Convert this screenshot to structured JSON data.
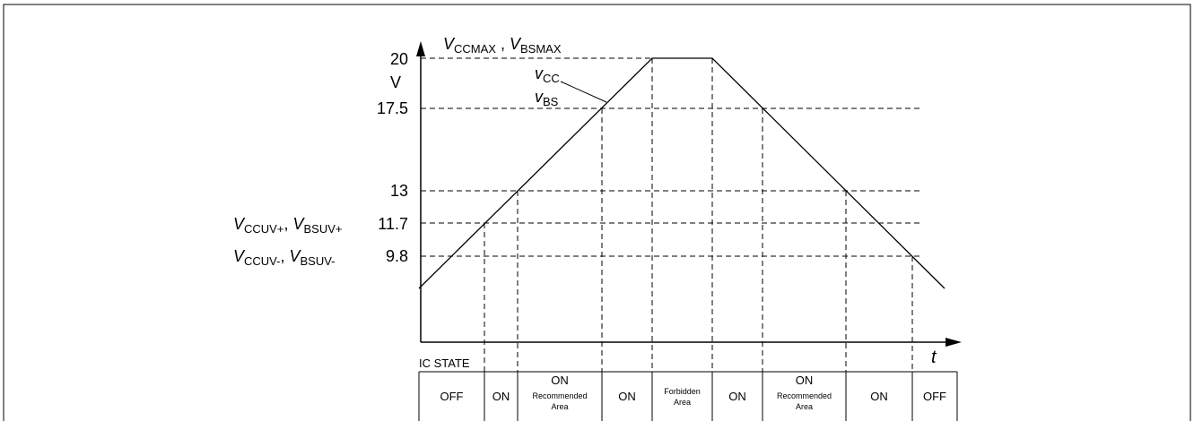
{
  "y_ticks": {
    "v20": "20",
    "unit": "V",
    "v17_5": "17.5",
    "v13": "13",
    "v11_7": "11.7",
    "v9_8": "9.8"
  },
  "top_label": {
    "v1": "V",
    "s1": "CCMAX",
    "sep": " , ",
    "v2": "V",
    "s2": "BSMAX"
  },
  "uv_plus_label": {
    "v1": "V",
    "s1": "CCUV+",
    "sep": ", ",
    "v2": "V",
    "s2": "BSUV+"
  },
  "uv_minus_label": {
    "v1": "V",
    "s1": "CCUV-",
    "sep": ", ",
    "v2": "V",
    "s2": "BSUV-"
  },
  "curve_labels": {
    "vcc_v": "v",
    "vcc_s": "CC",
    "vbs_v": "v",
    "vbs_s": "BS"
  },
  "time_axis_label": "t",
  "ic_state_label": "IC STATE",
  "states": [
    {
      "main": "OFF",
      "sub": ""
    },
    {
      "main": "ON",
      "sub": ""
    },
    {
      "main": "ON",
      "sub": "Recommended Area"
    },
    {
      "main": "ON",
      "sub": ""
    },
    {
      "main": "",
      "sub": "Forbidden Area"
    },
    {
      "main": "ON",
      "sub": ""
    },
    {
      "main": "ON",
      "sub": "Recommended Area"
    },
    {
      "main": "ON",
      "sub": ""
    },
    {
      "main": "OFF",
      "sub": ""
    }
  ]
}
